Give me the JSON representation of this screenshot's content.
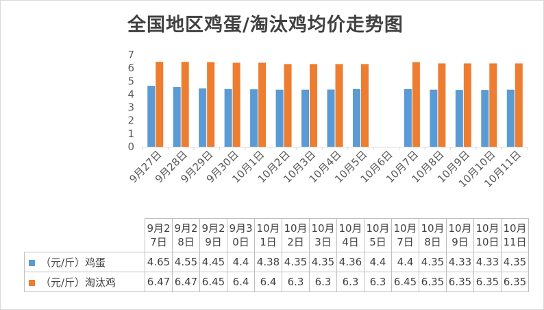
{
  "chart_data": {
    "type": "bar",
    "title": "全国地区鸡蛋/淘汰鸡均价走势图",
    "categories": [
      "9月27日",
      "9月28日",
      "9月29日",
      "9月30日",
      "10月1日",
      "10月2日",
      "10月3日",
      "10月4日",
      "10月5日",
      "10月6日",
      "10月7日",
      "10月8日",
      "10月9日",
      "10月10日",
      "10月11日"
    ],
    "table_headers": [
      [
        "9月2",
        "7日"
      ],
      [
        "9月2",
        "8日"
      ],
      [
        "9月2",
        "9日"
      ],
      [
        "9月3",
        "0日"
      ],
      [
        "10月",
        "1日"
      ],
      [
        "10月",
        "2日"
      ],
      [
        "10月",
        "3日"
      ],
      [
        "10月",
        "4日"
      ],
      [
        "10月",
        "5日"
      ],
      [
        "10月",
        "7日"
      ],
      [
        "10月",
        "8日"
      ],
      [
        "10月",
        "9日"
      ],
      [
        "10月",
        "10日"
      ],
      [
        "10月",
        "11日"
      ]
    ],
    "series": [
      {
        "name": "（元/斤）鸡蛋",
        "color": "#5b9bd5",
        "values": [
          4.65,
          4.55,
          4.45,
          4.4,
          4.38,
          4.35,
          4.35,
          4.36,
          4.4,
          null,
          4.4,
          4.35,
          4.33,
          4.33,
          4.35
        ],
        "table_values": [
          "4.65",
          "4.55",
          "4.45",
          "4.4",
          "4.38",
          "4.35",
          "4.35",
          "4.36",
          "4.4",
          "4.4",
          "4.35",
          "4.33",
          "4.33",
          "4.35"
        ]
      },
      {
        "name": "（元/斤）淘汰鸡",
        "color": "#ed7d31",
        "values": [
          6.47,
          6.47,
          6.45,
          6.4,
          6.4,
          6.3,
          6.3,
          6.3,
          6.3,
          null,
          6.45,
          6.35,
          6.35,
          6.35,
          6.35
        ],
        "table_values": [
          "6.47",
          "6.47",
          "6.45",
          "6.4",
          "6.4",
          "6.3",
          "6.3",
          "6.3",
          "6.3",
          "6.45",
          "6.35",
          "6.35",
          "6.35",
          "6.35"
        ]
      }
    ],
    "ylim": [
      0,
      7
    ],
    "yticks": [
      "0",
      "1",
      "2",
      "3",
      "4",
      "5",
      "6",
      "7"
    ],
    "grid": false,
    "legend": "data-table"
  }
}
